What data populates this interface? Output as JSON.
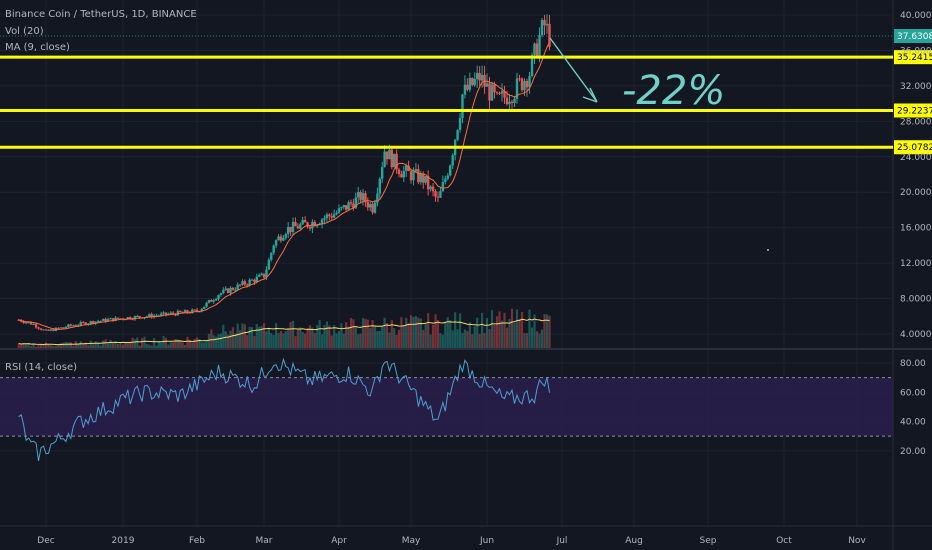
{
  "chart_data": [
    {
      "type": "candlestick",
      "legend": {
        "symbol": "Binance Coin / TetherUS, 1D, BINANCE",
        "volume": "Vol (20)",
        "ma": "MA (9, close)"
      },
      "y_ticks": [
        "40.0000",
        "36.0000",
        "32.0000",
        "28.0000",
        "24.0000",
        "20.0000",
        "16.0000",
        "12.0000",
        "8.0000",
        "4.0000"
      ],
      "x_ticks": [
        "Dec",
        "2019",
        "Feb",
        "Mar",
        "Apr",
        "May",
        "Jun",
        "Jul",
        "Aug",
        "Sep",
        "Oct",
        "Nov"
      ],
      "last_price_label": "37.6308",
      "horizontal_levels": [
        {
          "price": 35.2415,
          "label": "35.2415"
        },
        {
          "price": 29.2237,
          "label": "29.2237"
        },
        {
          "price": 25.0782,
          "label": "25.0782"
        }
      ],
      "annotation": "-22%",
      "colors": {
        "up": "#26a69a",
        "down": "#ef5350",
        "ma": "#ff6d3a",
        "vol_ma": "#f5d76e",
        "level": "#ffff00",
        "arrow": "#6fd1c7"
      },
      "keypoints": [
        {
          "date": "Nov 20, 2018",
          "close": 5.6
        },
        {
          "date": "Nov 26, 2018",
          "close": 5.1
        },
        {
          "date": "Dec 1, 2018",
          "close": 4.3
        },
        {
          "date": "Dec 10, 2018",
          "close": 4.9
        },
        {
          "date": "Dec 20, 2018",
          "close": 5.4
        },
        {
          "date": "Jan 1, 2019",
          "close": 5.8
        },
        {
          "date": "Jan 15, 2019",
          "close": 6.1
        },
        {
          "date": "Feb 1, 2019",
          "close": 6.6
        },
        {
          "date": "Feb 10, 2019",
          "close": 8.5
        },
        {
          "date": "Feb 20, 2019",
          "close": 9.6
        },
        {
          "date": "Mar 1, 2019",
          "close": 10.6
        },
        {
          "date": "Mar 5, 2019",
          "close": 14.2
        },
        {
          "date": "Mar 10, 2019",
          "close": 15.8
        },
        {
          "date": "Mar 20, 2019",
          "close": 16.5
        },
        {
          "date": "Apr 1, 2019",
          "close": 17.8
        },
        {
          "date": "Apr 10, 2019",
          "close": 19.5
        },
        {
          "date": "Apr 15, 2019",
          "close": 18.3
        },
        {
          "date": "Apr 20, 2019",
          "close": 24.8
        },
        {
          "date": "Apr 27, 2019",
          "close": 22.4
        },
        {
          "date": "May 6, 2019",
          "close": 21.5
        },
        {
          "date": "May 12, 2019",
          "close": 19.0
        },
        {
          "date": "May 17, 2019",
          "close": 23.5
        },
        {
          "date": "May 22, 2019",
          "close": 31.0
        },
        {
          "date": "May 29, 2019",
          "close": 33.0
        },
        {
          "date": "Jun 5, 2019",
          "close": 30.2
        },
        {
          "date": "Jun 12, 2019",
          "close": 31.5
        },
        {
          "date": "Jun 18, 2019",
          "close": 33.5
        },
        {
          "date": "Jun 22, 2019",
          "close": 37.5
        },
        {
          "date": "Jun 24, 2019",
          "close": 38.8
        },
        {
          "date": "Jun 26, 2019",
          "close": 37.6
        }
      ]
    },
    {
      "type": "line",
      "title": "RSI (14, close)",
      "y_ticks": [
        "80.00",
        "60.00",
        "40.00",
        "20.00"
      ],
      "bands": [
        70,
        30
      ],
      "color": "#4f9ecf",
      "band_fill": "#2a1f4e",
      "keypoints": [
        {
          "date": "Nov 20, 2018",
          "rsi": 45
        },
        {
          "date": "Nov 24, 2018",
          "rsi": 25
        },
        {
          "date": "Nov 28, 2018",
          "rsi": 18
        },
        {
          "date": "Dec 6, 2018",
          "rsi": 27
        },
        {
          "date": "Dec 15, 2018",
          "rsi": 40
        },
        {
          "date": "Jan 1, 2019",
          "rsi": 55
        },
        {
          "date": "Jan 10, 2019",
          "rsi": 60
        },
        {
          "date": "Jan 25, 2019",
          "rsi": 58
        },
        {
          "date": "Feb 10, 2019",
          "rsi": 74
        },
        {
          "date": "Feb 25, 2019",
          "rsi": 65
        },
        {
          "date": "Mar 5, 2019",
          "rsi": 82
        },
        {
          "date": "Mar 20, 2019",
          "rsi": 68
        },
        {
          "date": "Apr 5, 2019",
          "rsi": 73
        },
        {
          "date": "Apr 15, 2019",
          "rsi": 60
        },
        {
          "date": "Apr 20, 2019",
          "rsi": 82
        },
        {
          "date": "May 1, 2019",
          "rsi": 62
        },
        {
          "date": "May 12, 2019",
          "rsi": 40
        },
        {
          "date": "May 22, 2019",
          "rsi": 80
        },
        {
          "date": "Jun 1, 2019",
          "rsi": 63
        },
        {
          "date": "Jun 8, 2019",
          "rsi": 55
        },
        {
          "date": "Jun 20, 2019",
          "rsi": 58
        },
        {
          "date": "Jun 24, 2019",
          "rsi": 70
        },
        {
          "date": "Jun 26, 2019",
          "rsi": 62
        }
      ]
    }
  ]
}
